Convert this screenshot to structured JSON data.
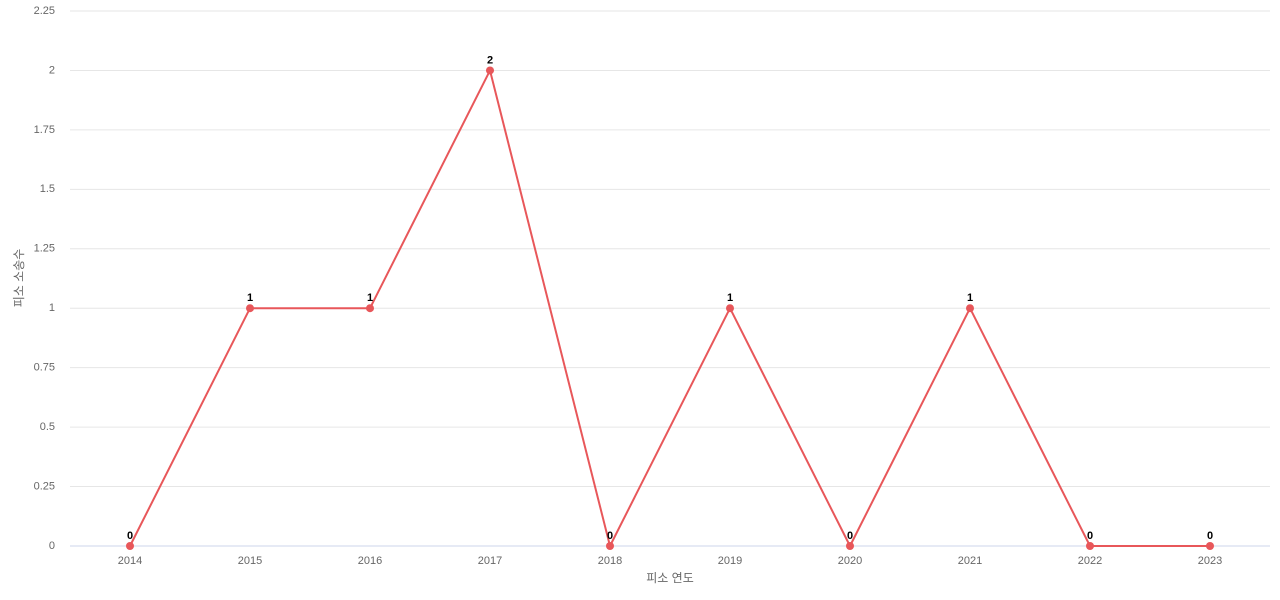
{
  "chart_data": {
    "type": "line",
    "x_label": "피소 연도",
    "y_label": "피소 소송수",
    "categories": [
      "2014",
      "2015",
      "2016",
      "2017",
      "2018",
      "2019",
      "2020",
      "2021",
      "2022",
      "2023"
    ],
    "series": [
      {
        "name": "피소 소송수",
        "color": "#e8575a",
        "values": [
          0,
          1,
          1,
          2,
          0,
          1,
          0,
          1,
          0,
          0
        ]
      }
    ],
    "ylim": [
      0,
      2.25
    ],
    "yticks": [
      0,
      0.25,
      0.5,
      0.75,
      1,
      1.25,
      1.5,
      1.75,
      2,
      2.25
    ],
    "grid": true,
    "data_labels": true
  }
}
